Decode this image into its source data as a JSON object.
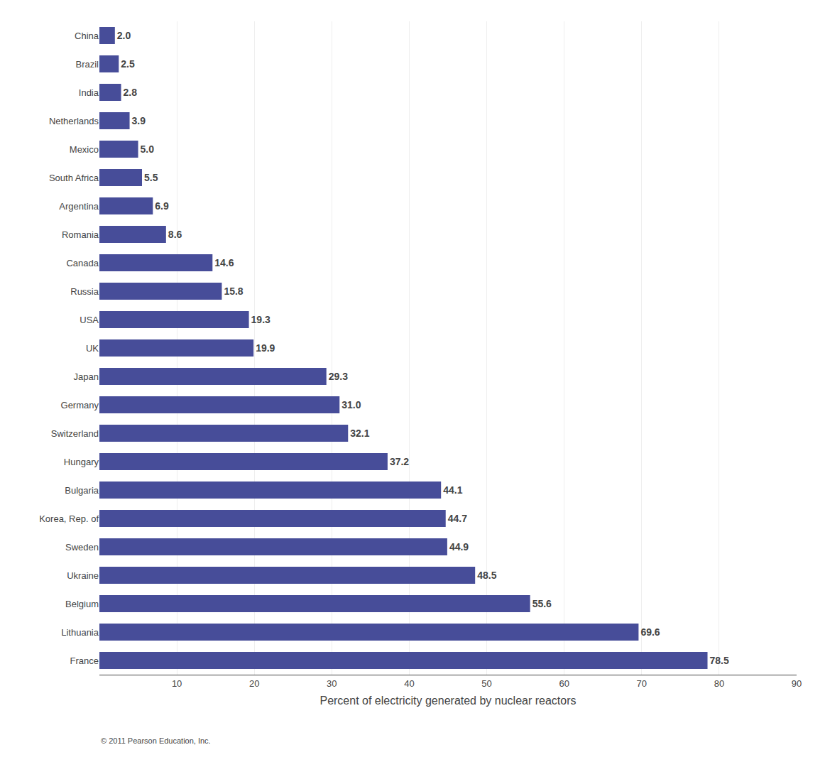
{
  "chart_data": {
    "type": "bar",
    "orientation": "horizontal",
    "categories": [
      "China",
      "Brazil",
      "India",
      "Netherlands",
      "Mexico",
      "South Africa",
      "Argentina",
      "Romania",
      "Canada",
      "Russia",
      "USA",
      "UK",
      "Japan",
      "Germany",
      "Switzerland",
      "Hungary",
      "Bulgaria",
      "Korea, Rep. of",
      "Sweden",
      "Ukraine",
      "Belgium",
      "Lithuania",
      "France"
    ],
    "values": [
      2.0,
      2.5,
      2.8,
      3.9,
      5.0,
      5.5,
      6.9,
      8.6,
      14.6,
      15.8,
      19.3,
      19.9,
      29.3,
      31.0,
      32.1,
      37.2,
      44.1,
      44.7,
      44.9,
      48.5,
      55.6,
      69.6,
      78.5
    ],
    "value_labels": [
      "2.0",
      "2.5",
      "2.8",
      "3.9",
      "5.0",
      "5.5",
      "6.9",
      "8.6",
      "14.6",
      "15.8",
      "19.3",
      "19.9",
      "29.3",
      "31.0",
      "32.1",
      "37.2",
      "44.1",
      "44.7",
      "44.9",
      "48.5",
      "55.6",
      "69.6",
      "78.5"
    ],
    "data_labels": true,
    "color": "#474d99",
    "xlabel": "Percent of electricity generated by nuclear reactors",
    "xlim": [
      0,
      90
    ],
    "xticks": [
      10,
      20,
      30,
      40,
      50,
      60,
      70,
      80,
      90
    ],
    "grid": true,
    "annotations": [
      "© 2011 Pearson Education, Inc."
    ]
  }
}
